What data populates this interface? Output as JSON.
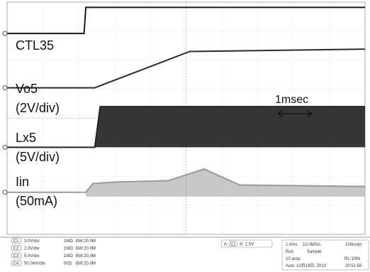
{
  "chart_data": {
    "type": "line",
    "title": "",
    "xlabel": "",
    "ylabel": "",
    "x_unit": "ms",
    "y_unit": "div",
    "xlim": [
      0,
      10
    ],
    "ylim": [
      0,
      8
    ],
    "grid": true,
    "annotations": {
      "time_scale": "1msec"
    },
    "series": [
      {
        "name": "CTL35",
        "x": [
          0,
          2.15,
          2.2,
          10
        ],
        "y": [
          6.92,
          6.92,
          7.82,
          7.82
        ]
      },
      {
        "name": "Vo5",
        "scale": "(2V/div)",
        "x": [
          0,
          2.45,
          5.1,
          10
        ],
        "y": [
          5.05,
          5.05,
          6.3,
          6.38
        ]
      },
      {
        "name": "Lx5",
        "scale": "(5V/div)",
        "x": [
          0,
          2.45,
          2.6,
          10
        ],
        "y": [
          3.0,
          3.0,
          4.4,
          4.4
        ],
        "envelope_low": 3.0
      },
      {
        "name": "Iin",
        "scale": "(50mA)",
        "x": [
          0,
          2.2,
          2.4,
          3.0,
          4.5,
          5.5,
          6.5,
          10
        ],
        "y": [
          1.45,
          1.45,
          1.75,
          1.8,
          1.85,
          2.25,
          1.7,
          1.65
        ],
        "envelope_low": 1.3
      }
    ],
    "status_bar": {
      "channels": [
        {
          "id": "C1",
          "volts": "3.0V/div",
          "impedance": "1MΩ",
          "bw": "BW:20.0M"
        },
        {
          "id": "C2",
          "volts": "2.0V/div",
          "impedance": "1MΩ",
          "bw": "BW:20.0M"
        },
        {
          "id": "C3",
          "volts": "5.0V/div",
          "impedance": "1MΩ",
          "bw": "BW:20.0M"
        },
        {
          "id": "C4",
          "volts": "50.0mV/div",
          "impedance": "50Ω",
          "bw": "BW:20.0M"
        }
      ],
      "trigger": {
        "source": "C1",
        "level": "1.5V"
      },
      "timebase": {
        "row1": [
          "1.0ms",
          "10.0MS/s",
          "100ns/pt"
        ],
        "row2": [
          "Run",
          "Sample"
        ],
        "row3": [
          "10 acqs",
          "RL:100k"
        ],
        "row4": [
          "Auto",
          "10月19日, 2010",
          "20:51:56"
        ]
      }
    }
  }
}
